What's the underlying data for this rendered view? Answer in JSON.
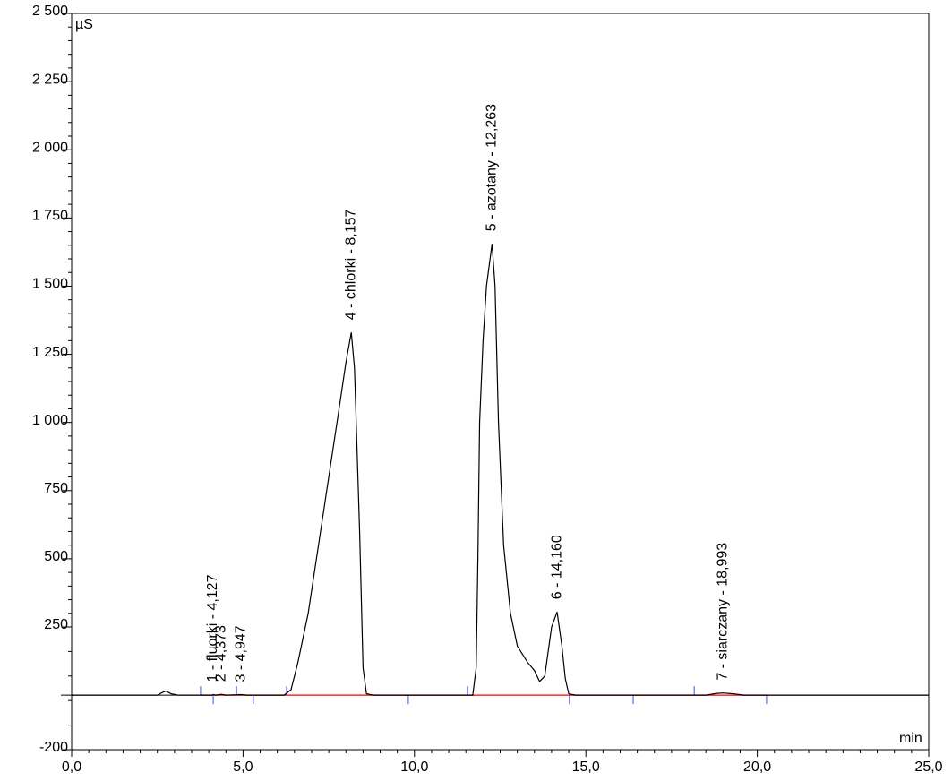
{
  "chart_data": {
    "type": "line",
    "y_label": "µS",
    "x_label": "min",
    "xlim": [
      0,
      25
    ],
    "ylim": [
      -200,
      2500
    ],
    "xticks": [
      {
        "value": 0,
        "label": "0,0"
      },
      {
        "value": 5,
        "label": "5,0"
      },
      {
        "value": 10,
        "label": "10,0"
      },
      {
        "value": 15,
        "label": "15,0"
      },
      {
        "value": 20,
        "label": "20,0"
      },
      {
        "value": 25,
        "label": "25,0"
      }
    ],
    "yticks": [
      {
        "value": -200,
        "label": "-200"
      },
      250,
      500,
      750,
      {
        "value": 1000,
        "label": "1 000"
      },
      {
        "value": 1250,
        "label": "1 250"
      },
      {
        "value": 1500,
        "label": "1 500"
      },
      {
        "value": 1750,
        "label": "1 750"
      },
      {
        "value": 2000,
        "label": "2 000"
      },
      {
        "value": 2250,
        "label": "2 250"
      },
      {
        "value": 2500,
        "label": "2 500"
      }
    ],
    "series": [
      {
        "color": "#000000",
        "x": [
          0,
          2.5,
          2.65,
          2.75,
          2.9,
          3.1,
          4.1,
          4.13,
          4.2,
          4.37,
          4.5,
          4.95,
          5.1,
          6.2,
          6.4,
          6.6,
          6.9,
          7.2,
          7.5,
          7.8,
          8.0,
          8.157,
          8.25,
          8.4,
          8.5,
          8.6,
          8.8,
          11.7,
          11.8,
          11.85,
          11.9,
          12.0,
          12.1,
          12.263,
          12.35,
          12.45,
          12.6,
          12.8,
          13.0,
          13.3,
          13.5,
          13.65,
          13.8,
          14.0,
          14.16,
          14.3,
          14.4,
          14.5,
          14.7,
          18.5,
          18.8,
          19.0,
          19.3,
          19.6,
          25
        ],
        "values": [
          0,
          0,
          10,
          15,
          5,
          0,
          0,
          2,
          0,
          3,
          0,
          2,
          0,
          0,
          20,
          120,
          300,
          550,
          800,
          1050,
          1220,
          1330,
          1200,
          600,
          100,
          5,
          0,
          0,
          100,
          500,
          1000,
          1300,
          1500,
          1655,
          1500,
          1000,
          550,
          300,
          180,
          120,
          90,
          50,
          70,
          250,
          305,
          180,
          60,
          5,
          0,
          0,
          6,
          8,
          5,
          0,
          0
        ]
      }
    ],
    "integration_marks": {
      "start": [
        3.76,
        4.81,
        6.27,
        11.55,
        18.16
      ],
      "end": [
        4.13,
        5.3,
        9.82,
        14.52,
        16.38,
        20.27
      ]
    },
    "annotations": [
      {
        "text": "1 - fluorki - 4,127",
        "x": 4.127,
        "y": 2
      },
      {
        "text": "2 - 4,373",
        "x": 4.373,
        "y": 3
      },
      {
        "text": "3 - 4,947",
        "x": 4.947,
        "y": 2
      },
      {
        "text": "4 - chlorki - 8,157",
        "x": 8.157,
        "y": 1330
      },
      {
        "text": "5 - azotany - 12,263",
        "x": 12.263,
        "y": 1655
      },
      {
        "text": "6 - 14,160",
        "x": 14.16,
        "y": 305
      },
      {
        "text": "7 - siarczany - 18,993",
        "x": 18.993,
        "y": 8
      }
    ]
  }
}
